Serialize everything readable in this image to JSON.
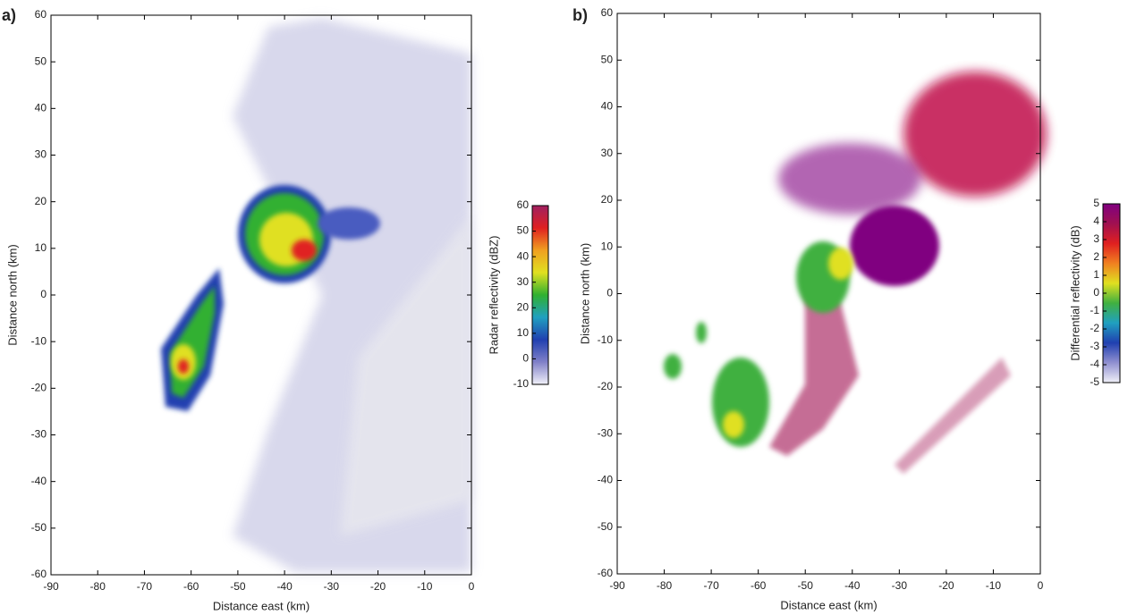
{
  "chart_data": [
    {
      "type": "heatmap",
      "panel_label": "a)",
      "xlabel": "Distance east (km)",
      "ylabel": "Distance north (km)",
      "xlim": [
        -90,
        0
      ],
      "xticks": [
        -90,
        -80,
        -70,
        -60,
        -50,
        -40,
        -30,
        -20,
        -10,
        0
      ],
      "ylim": [
        -60,
        60
      ],
      "yticks": [
        -60,
        -50,
        -40,
        -30,
        -20,
        -10,
        0,
        10,
        20,
        30,
        40,
        50,
        60
      ],
      "colorbar_label": "Radar reflectivity (dBZ)",
      "clim": [
        -10,
        60
      ],
      "cticks": [
        -10,
        0,
        10,
        20,
        30,
        40,
        50,
        60
      ],
      "colormap": [
        "#f0f0f8",
        "#8080c8",
        "#2040b0",
        "#20a0c0",
        "#30b030",
        "#e0e020",
        "#f0a020",
        "#e02020",
        "#a02060"
      ]
    },
    {
      "type": "heatmap",
      "panel_label": "b)",
      "xlabel": "Distance east (km)",
      "ylabel": "Distance north (km)",
      "xlim": [
        -90,
        0
      ],
      "xticks": [
        -90,
        -80,
        -70,
        -60,
        -50,
        -40,
        -30,
        -20,
        -10,
        0
      ],
      "ylim": [
        -60,
        60
      ],
      "yticks": [
        -60,
        -50,
        -40,
        -30,
        -20,
        -10,
        0,
        10,
        20,
        30,
        40,
        50,
        60
      ],
      "colorbar_label": "Differential reflectivity (dB)",
      "clim": [
        -5,
        5
      ],
      "cticks": [
        -5,
        -4,
        -3,
        -2,
        -1,
        0,
        1,
        2,
        3,
        4,
        5
      ],
      "colormap": [
        "#f0f0f8",
        "#9090d0",
        "#2040b0",
        "#20a0c0",
        "#40b040",
        "#e0e020",
        "#f08020",
        "#e02020",
        "#a01050",
        "#800080"
      ]
    }
  ]
}
